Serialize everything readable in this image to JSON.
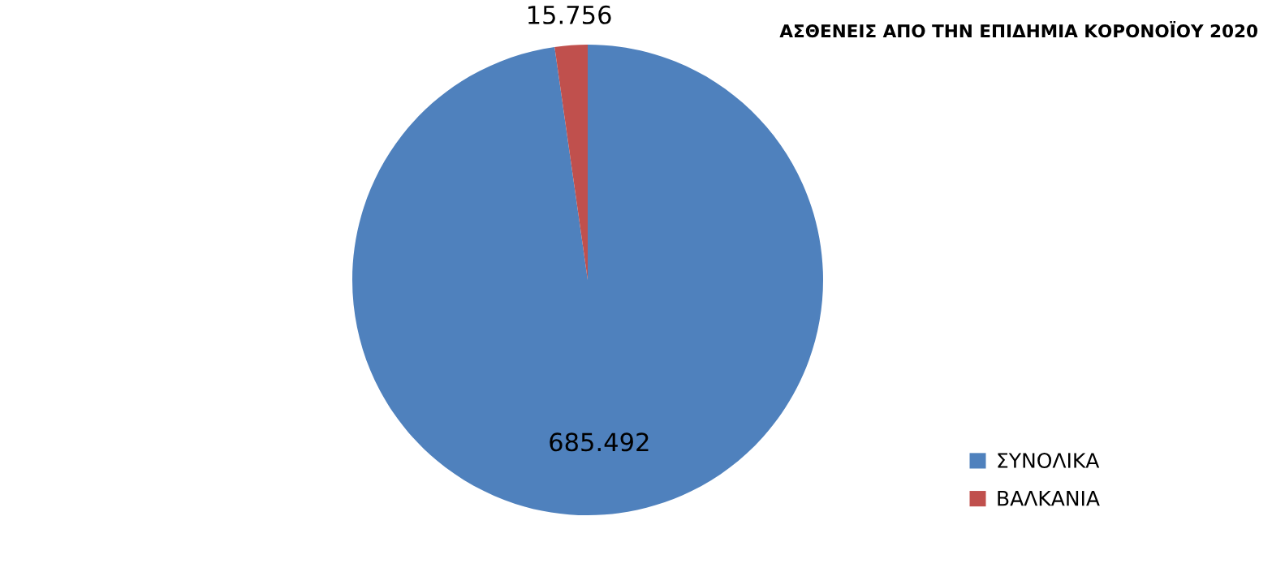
{
  "chart_data": {
    "type": "pie",
    "title": "ΑΣΘΕΝΕΙΣ ΑΠΟ ΤΗΝ ΕΠΙΔΗΜΙΑ ΚΟΡΟΝΟΪΟΥ 2020",
    "categories": [
      "ΣΥΝΟΛΙΚΑ",
      "ΒΑΛΚΑΝΙΑ"
    ],
    "values": [
      685492,
      15756
    ],
    "colors": [
      "#4f81bd",
      "#c0504d"
    ],
    "value_labels": [
      "685.492",
      "15.756"
    ],
    "legend": "bottom right"
  }
}
